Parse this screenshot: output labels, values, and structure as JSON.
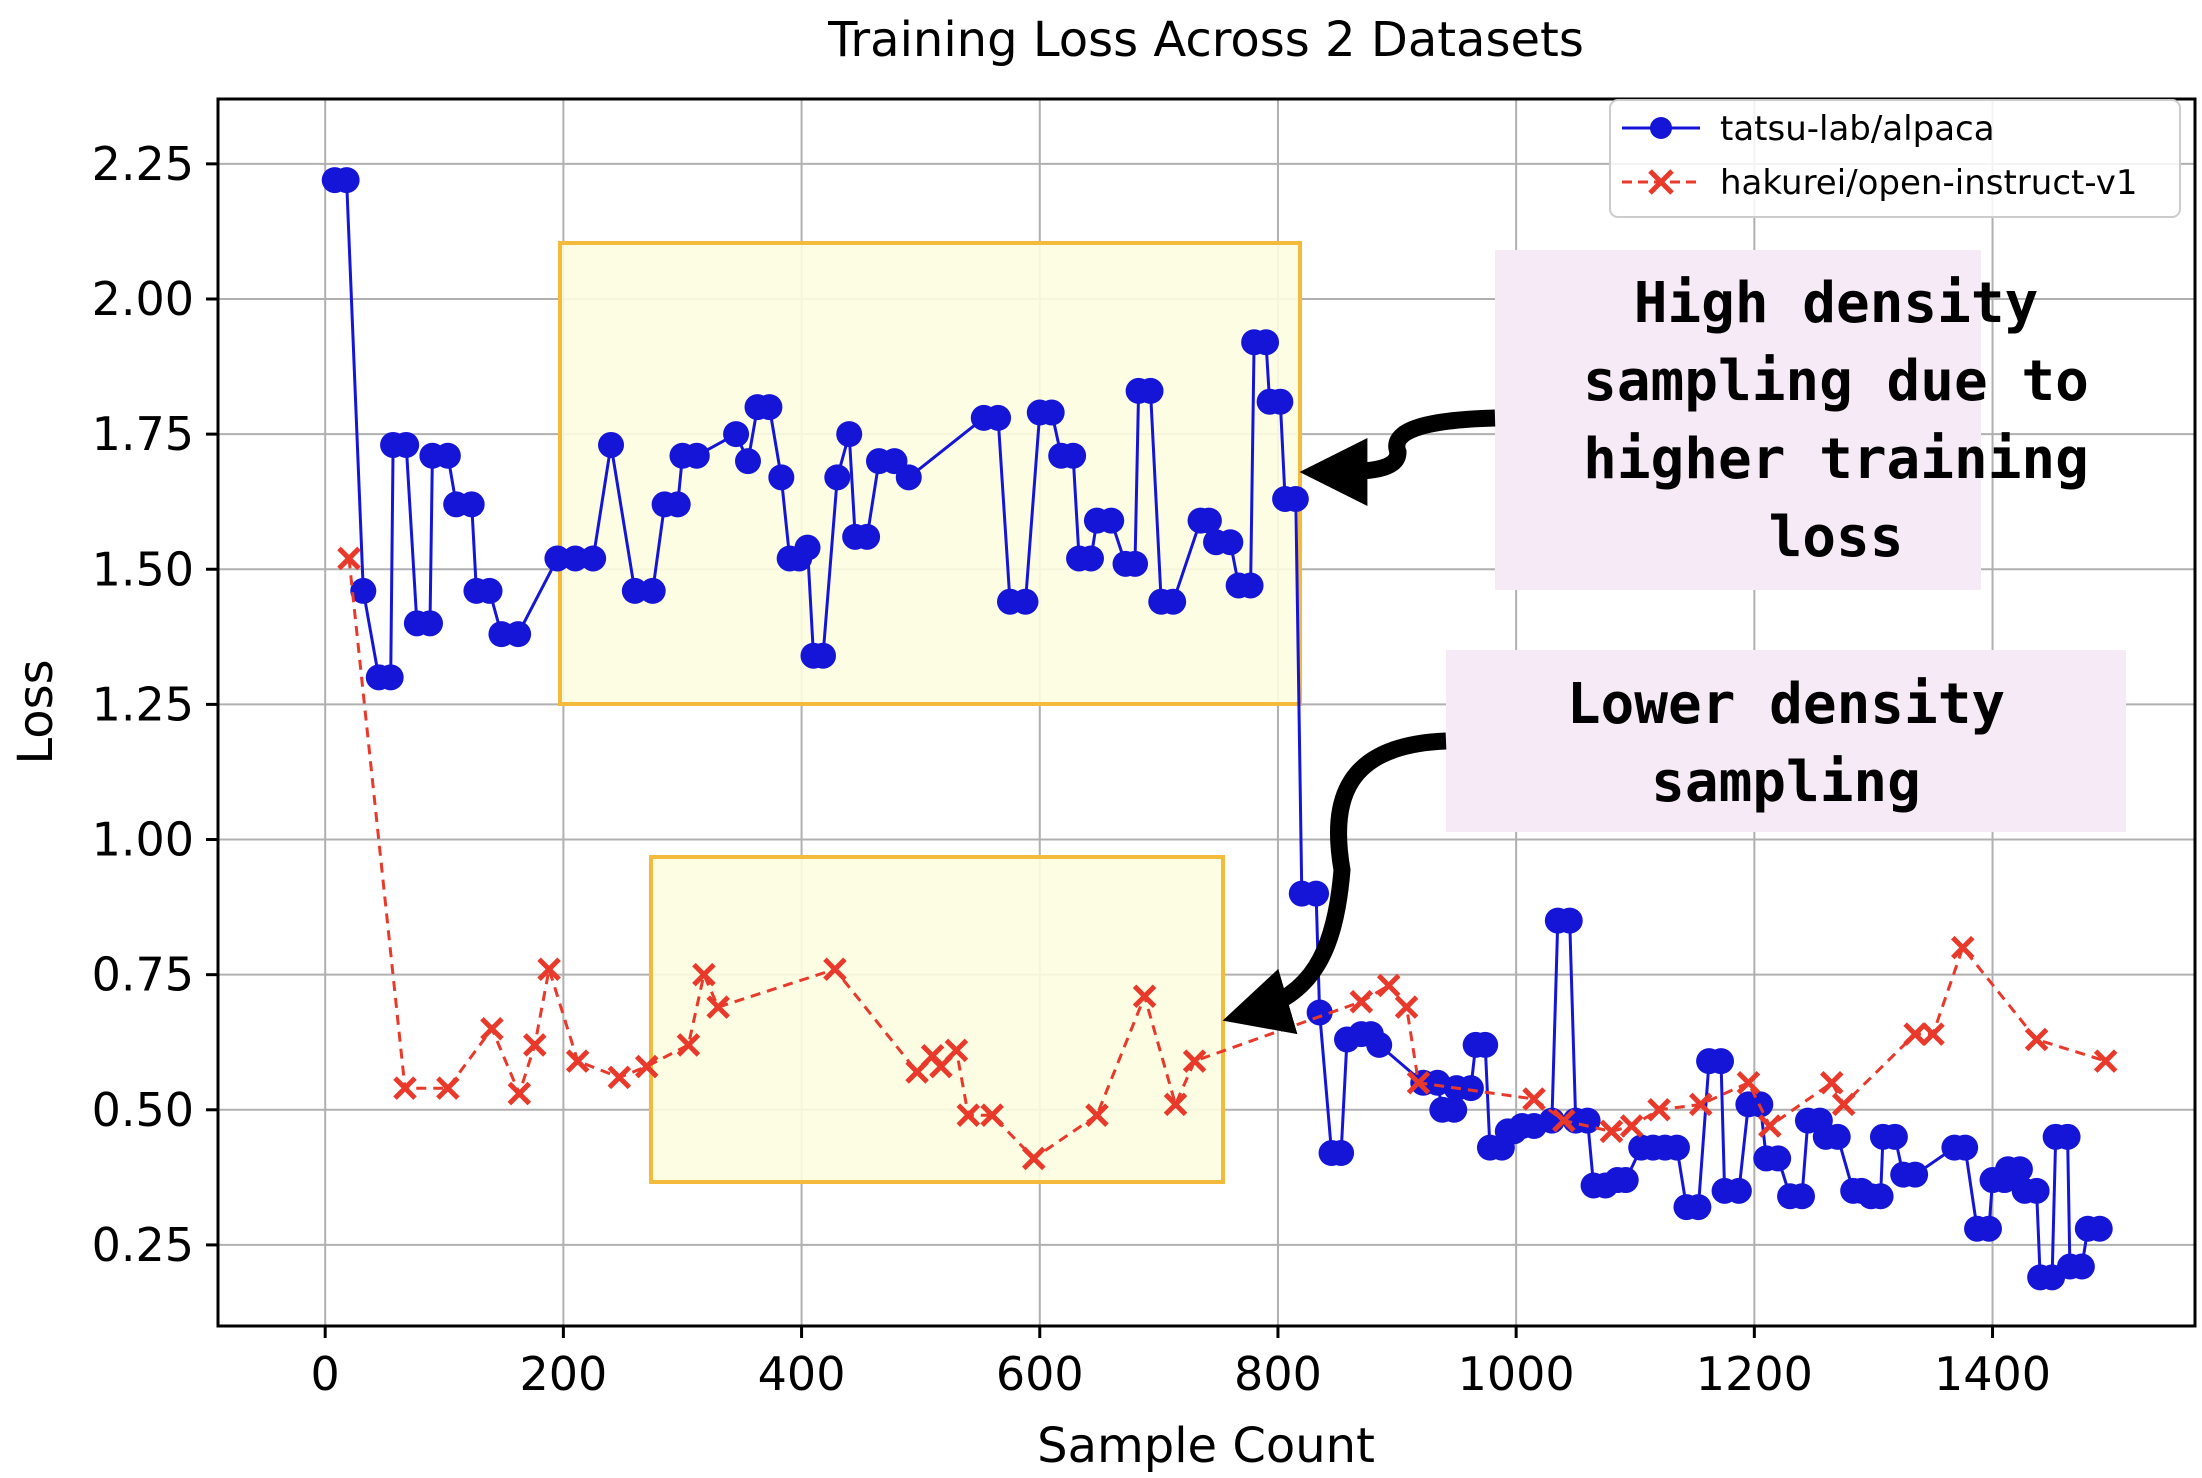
{
  "chart_data": {
    "type": "line",
    "title": "Training Loss Across 2 Datasets",
    "xlabel": "Sample Count",
    "ylabel": "Loss",
    "xlim": [
      -90,
      1570
    ],
    "ylim": [
      0.1,
      2.37
    ],
    "xticks": [
      0,
      200,
      400,
      600,
      800,
      1000,
      1200,
      1400
    ],
    "yticks": [
      0.25,
      0.5,
      0.75,
      1.0,
      1.25,
      1.5,
      1.75,
      2.0,
      2.25
    ],
    "ytick_labels": [
      "0.25",
      "0.50",
      "0.75",
      "1.00",
      "1.25",
      "1.50",
      "1.75",
      "2.00",
      "2.25"
    ],
    "grid": true,
    "legend_position": "top-right",
    "series": [
      {
        "name": "tatsu-lab/alpaca",
        "color": "#1515d8",
        "style": "solid",
        "marker": "circle",
        "points": [
          [
            8,
            2.22
          ],
          [
            18,
            2.22
          ],
          [
            32,
            1.46
          ],
          [
            45,
            1.3
          ],
          [
            55,
            1.3
          ],
          [
            57,
            1.73
          ],
          [
            68,
            1.73
          ],
          [
            77,
            1.4
          ],
          [
            88,
            1.4
          ],
          [
            90,
            1.71
          ],
          [
            103,
            1.71
          ],
          [
            110,
            1.62
          ],
          [
            123,
            1.62
          ],
          [
            127,
            1.46
          ],
          [
            138,
            1.46
          ],
          [
            148,
            1.38
          ],
          [
            162,
            1.38
          ],
          [
            195,
            1.52
          ],
          [
            210,
            1.52
          ],
          [
            225,
            1.52
          ],
          [
            240,
            1.73
          ],
          [
            260,
            1.46
          ],
          [
            275,
            1.46
          ],
          [
            285,
            1.62
          ],
          [
            296,
            1.62
          ],
          [
            300,
            1.71
          ],
          [
            312,
            1.71
          ],
          [
            345,
            1.75
          ],
          [
            355,
            1.7
          ],
          [
            363,
            1.8
          ],
          [
            373,
            1.8
          ],
          [
            383,
            1.67
          ],
          [
            390,
            1.52
          ],
          [
            398,
            1.52
          ],
          [
            405,
            1.54
          ],
          [
            410,
            1.34
          ],
          [
            418,
            1.34
          ],
          [
            430,
            1.67
          ],
          [
            440,
            1.75
          ],
          [
            445,
            1.56
          ],
          [
            455,
            1.56
          ],
          [
            465,
            1.7
          ],
          [
            478,
            1.7
          ],
          [
            490,
            1.67
          ],
          [
            553,
            1.78
          ],
          [
            565,
            1.78
          ],
          [
            575,
            1.44
          ],
          [
            588,
            1.44
          ],
          [
            600,
            1.79
          ],
          [
            610,
            1.79
          ],
          [
            618,
            1.71
          ],
          [
            628,
            1.71
          ],
          [
            633,
            1.52
          ],
          [
            643,
            1.52
          ],
          [
            648,
            1.59
          ],
          [
            660,
            1.59
          ],
          [
            672,
            1.51
          ],
          [
            680,
            1.51
          ],
          [
            683,
            1.83
          ],
          [
            693,
            1.83
          ],
          [
            702,
            1.44
          ],
          [
            712,
            1.44
          ],
          [
            735,
            1.59
          ],
          [
            742,
            1.59
          ],
          [
            748,
            1.55
          ],
          [
            760,
            1.55
          ],
          [
            767,
            1.47
          ],
          [
            777,
            1.47
          ],
          [
            780,
            1.92
          ],
          [
            790,
            1.92
          ],
          [
            793,
            1.81
          ],
          [
            802,
            1.81
          ],
          [
            806,
            1.63
          ],
          [
            815,
            1.63
          ],
          [
            820,
            0.9
          ],
          [
            832,
            0.9
          ],
          [
            835,
            0.68
          ],
          [
            845,
            0.42
          ],
          [
            853,
            0.42
          ],
          [
            858,
            0.63
          ],
          [
            870,
            0.64
          ],
          [
            878,
            0.64
          ],
          [
            885,
            0.62
          ],
          [
            922,
            0.55
          ],
          [
            934,
            0.55
          ],
          [
            938,
            0.5
          ],
          [
            948,
            0.5
          ],
          [
            950,
            0.54
          ],
          [
            962,
            0.54
          ],
          [
            966,
            0.62
          ],
          [
            974,
            0.62
          ],
          [
            978,
            0.43
          ],
          [
            988,
            0.43
          ],
          [
            993,
            0.46
          ],
          [
            998,
            0.46
          ],
          [
            1005,
            0.47
          ],
          [
            1015,
            0.47
          ],
          [
            1030,
            0.48
          ],
          [
            1035,
            0.85
          ],
          [
            1045,
            0.85
          ],
          [
            1050,
            0.48
          ],
          [
            1060,
            0.48
          ],
          [
            1065,
            0.36
          ],
          [
            1075,
            0.36
          ],
          [
            1085,
            0.37
          ],
          [
            1092,
            0.37
          ],
          [
            1105,
            0.43
          ],
          [
            1115,
            0.43
          ],
          [
            1125,
            0.43
          ],
          [
            1135,
            0.43
          ],
          [
            1143,
            0.32
          ],
          [
            1153,
            0.32
          ],
          [
            1162,
            0.59
          ],
          [
            1172,
            0.59
          ],
          [
            1175,
            0.35
          ],
          [
            1187,
            0.35
          ],
          [
            1195,
            0.51
          ],
          [
            1205,
            0.51
          ],
          [
            1210,
            0.41
          ],
          [
            1220,
            0.41
          ],
          [
            1230,
            0.34
          ],
          [
            1240,
            0.34
          ],
          [
            1245,
            0.48
          ],
          [
            1255,
            0.48
          ],
          [
            1260,
            0.45
          ],
          [
            1270,
            0.45
          ],
          [
            1283,
            0.35
          ],
          [
            1290,
            0.35
          ],
          [
            1298,
            0.34
          ],
          [
            1306,
            0.34
          ],
          [
            1308,
            0.45
          ],
          [
            1318,
            0.45
          ],
          [
            1325,
            0.38
          ],
          [
            1335,
            0.38
          ],
          [
            1368,
            0.43
          ],
          [
            1377,
            0.43
          ],
          [
            1387,
            0.28
          ],
          [
            1397,
            0.28
          ],
          [
            1400,
            0.37
          ],
          [
            1410,
            0.37
          ],
          [
            1413,
            0.39
          ],
          [
            1423,
            0.39
          ],
          [
            1427,
            0.35
          ],
          [
            1437,
            0.35
          ],
          [
            1440,
            0.19
          ],
          [
            1450,
            0.19
          ],
          [
            1453,
            0.45
          ],
          [
            1463,
            0.45
          ],
          [
            1465,
            0.21
          ],
          [
            1475,
            0.21
          ],
          [
            1480,
            0.28
          ],
          [
            1490,
            0.28
          ]
        ]
      },
      {
        "name": "hakurei/open-instruct-v1",
        "color": "#e8392a",
        "style": "dashed",
        "marker": "x",
        "points": [
          [
            20,
            1.52
          ],
          [
            67,
            0.54
          ],
          [
            103,
            0.54
          ],
          [
            140,
            0.65
          ],
          [
            163,
            0.53
          ],
          [
            176,
            0.62
          ],
          [
            188,
            0.76
          ],
          [
            212,
            0.59
          ],
          [
            247,
            0.56
          ],
          [
            270,
            0.58
          ],
          [
            305,
            0.62
          ],
          [
            318,
            0.75
          ],
          [
            330,
            0.69
          ],
          [
            428,
            0.76
          ],
          [
            497,
            0.57
          ],
          [
            510,
            0.6
          ],
          [
            517,
            0.58
          ],
          [
            530,
            0.61
          ],
          [
            540,
            0.49
          ],
          [
            560,
            0.49
          ],
          [
            595,
            0.41
          ],
          [
            648,
            0.49
          ],
          [
            688,
            0.71
          ],
          [
            714,
            0.51
          ],
          [
            730,
            0.59
          ],
          [
            870,
            0.7
          ],
          [
            893,
            0.73
          ],
          [
            908,
            0.69
          ],
          [
            918,
            0.55
          ],
          [
            1015,
            0.52
          ],
          [
            1040,
            0.48
          ],
          [
            1080,
            0.46
          ],
          [
            1097,
            0.47
          ],
          [
            1120,
            0.5
          ],
          [
            1155,
            0.51
          ],
          [
            1195,
            0.55
          ],
          [
            1213,
            0.47
          ],
          [
            1265,
            0.55
          ],
          [
            1275,
            0.51
          ],
          [
            1335,
            0.64
          ],
          [
            1350,
            0.64
          ],
          [
            1375,
            0.8
          ],
          [
            1437,
            0.63
          ],
          [
            1495,
            0.59
          ]
        ]
      }
    ],
    "annotations": [
      {
        "text_lines": [
          "High density",
          "sampling due to",
          "higher training",
          "loss"
        ]
      },
      {
        "text_lines": [
          "Lower density",
          "sampling"
        ]
      }
    ]
  }
}
